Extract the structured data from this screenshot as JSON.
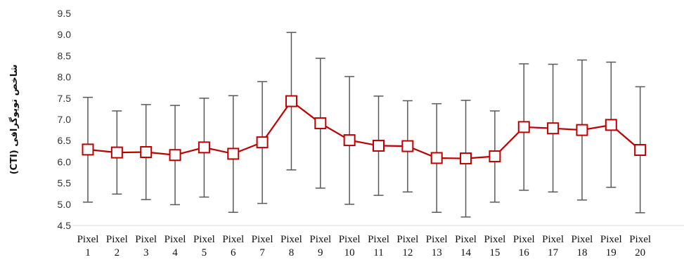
{
  "chart_data": {
    "type": "line",
    "ylabel": "شاخص توپوگرافی (CTI)",
    "xlabel": "",
    "ylim": [
      4.5,
      9.5
    ],
    "yticks": [
      "4.5",
      "5.0",
      "5.5",
      "6.0",
      "6.5",
      "7.0",
      "7.5",
      "8.0",
      "8.5",
      "9.0",
      "9.5"
    ],
    "grid": false,
    "categories": [
      [
        "Pixel",
        "1"
      ],
      [
        "Pixel",
        "2"
      ],
      [
        "Pixel",
        "3"
      ],
      [
        "Pixel",
        "4"
      ],
      [
        "Pixel",
        "5"
      ],
      [
        "Pixel",
        "6"
      ],
      [
        "Pixel",
        "7"
      ],
      [
        "Pixel",
        "8"
      ],
      [
        "Pixel",
        "9"
      ],
      [
        "Pixel",
        "10"
      ],
      [
        "Pixel",
        "11"
      ],
      [
        "Pixel",
        "12"
      ],
      [
        "Pixel",
        "13"
      ],
      [
        "Pixel",
        "14"
      ],
      [
        "Pixel",
        "15"
      ],
      [
        "Pixel",
        "16"
      ],
      [
        "Pixel",
        "17"
      ],
      [
        "Pixel",
        "18"
      ],
      [
        "Pixel",
        "19"
      ],
      [
        "Pixel",
        "20"
      ]
    ],
    "series": [
      {
        "values": [
          6.29,
          6.22,
          6.23,
          6.16,
          6.34,
          6.19,
          6.46,
          7.43,
          6.91,
          6.51,
          6.38,
          6.37,
          6.09,
          6.08,
          6.13,
          6.82,
          6.79,
          6.75,
          6.87,
          6.28
        ],
        "error_low": [
          5.05,
          5.24,
          5.11,
          4.99,
          5.17,
          4.81,
          5.02,
          5.81,
          5.38,
          5.0,
          5.21,
          5.29,
          4.81,
          4.7,
          5.05,
          5.33,
          5.29,
          5.1,
          5.4,
          4.8
        ],
        "error_high": [
          7.52,
          7.2,
          7.35,
          7.33,
          7.5,
          7.56,
          7.89,
          9.05,
          8.44,
          8.01,
          7.55,
          7.44,
          7.37,
          7.45,
          7.2,
          8.31,
          8.3,
          8.4,
          8.35,
          7.77
        ],
        "line_color": "#c00000",
        "marker": "square",
        "error_bar_color": "#595959"
      }
    ]
  }
}
